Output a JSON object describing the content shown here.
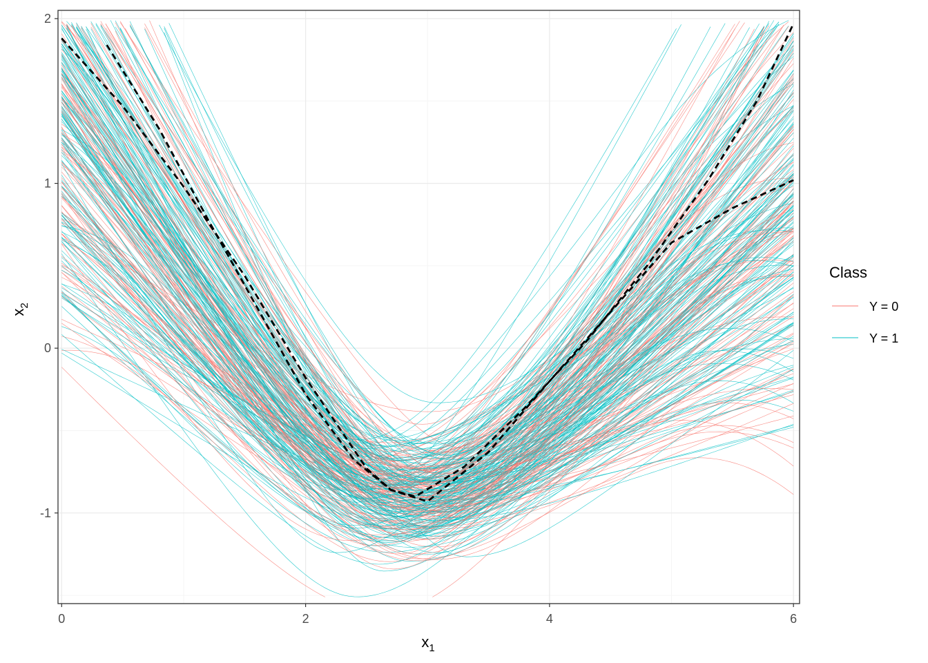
{
  "chart_data": {
    "type": "line",
    "xlabel": "x",
    "xlabel_sub": "1",
    "ylabel": "x",
    "ylabel_sub": "2",
    "xlim": [
      -0.03,
      6.05
    ],
    "ylim": [
      -1.55,
      2.05
    ],
    "x_ticks": [
      0,
      2,
      4,
      6
    ],
    "x_tick_labels": [
      "0",
      "2",
      "4",
      "6"
    ],
    "y_ticks": [
      -1,
      0,
      1,
      2
    ],
    "y_tick_labels": [
      "-1",
      "0",
      "1",
      "2"
    ],
    "grid": true,
    "legend": {
      "title": "Class",
      "position": "right",
      "entries": [
        {
          "label": "Y = 0",
          "color": "#F8766D"
        },
        {
          "label": "Y = 1",
          "color": "#00BFC4"
        }
      ]
    },
    "series_curves_note": "Many thin curves per class, approximately V/parabola shaped with minimum near x=2.8, y=-0.9; individual curves are illustrative samples.",
    "mean_curves": [
      {
        "x": [
          0,
          0.5,
          1.0,
          1.5,
          2.0,
          2.5,
          2.7,
          3.0,
          3.5,
          4.0,
          4.5,
          5.0,
          5.5,
          6.0
        ],
        "y": [
          1.88,
          1.47,
          0.98,
          0.44,
          -0.18,
          -0.73,
          -0.86,
          -0.93,
          -0.63,
          -0.2,
          0.22,
          0.64,
          0.85,
          1.02
        ]
      },
      {
        "x": [
          0.37,
          0.8,
          1.2,
          1.6,
          2.0,
          2.4,
          2.7,
          2.9,
          3.3,
          3.8,
          4.3,
          4.8,
          5.3,
          5.7,
          6.0
        ],
        "y": [
          1.84,
          1.33,
          0.78,
          0.25,
          -0.28,
          -0.68,
          -0.86,
          -0.9,
          -0.72,
          -0.36,
          0.04,
          0.5,
          1.02,
          1.5,
          1.97
        ]
      }
    ],
    "colors": {
      "class0": "#F8766D",
      "class1": "#00BFC4",
      "mean": "#000000",
      "grid_major": "#EBEBEB",
      "grid_minor": "#F5F5F5",
      "panel_border": "#333333"
    }
  }
}
